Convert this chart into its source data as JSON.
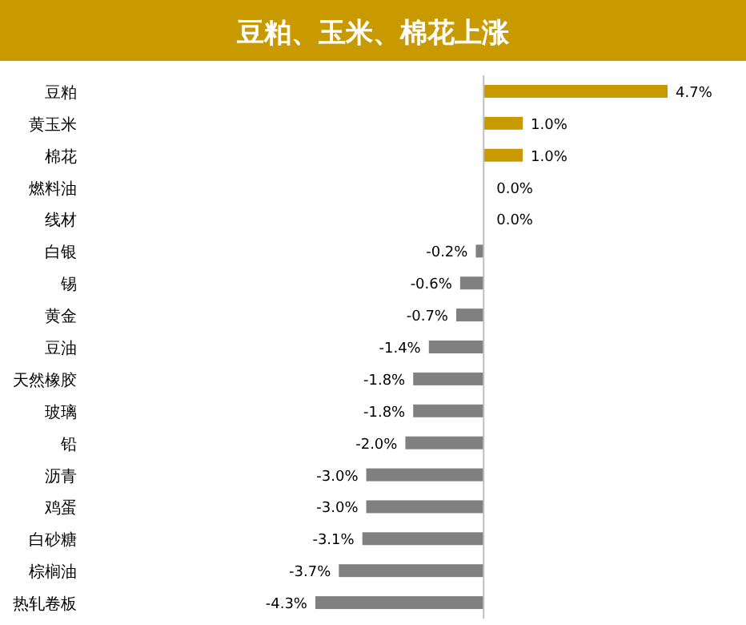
{
  "chart_data": {
    "type": "bar",
    "orientation": "horizontal",
    "title": "豆粕、玉米、棉花上涨",
    "categories": [
      "豆粕",
      "黄玉米",
      "棉花",
      "燃料油",
      "线材",
      "白银",
      "锡",
      "黄金",
      "豆油",
      "天然橡胶",
      "玻璃",
      "铅",
      "沥青",
      "鸡蛋",
      "白砂糖",
      "棕榈油",
      "热轧卷板"
    ],
    "values": [
      4.7,
      1.0,
      1.0,
      0.0,
      0.0,
      -0.2,
      -0.6,
      -0.7,
      -1.4,
      -1.8,
      -1.8,
      -2.0,
      -3.0,
      -3.0,
      -3.1,
      -3.7,
      -4.3
    ],
    "value_labels": [
      "4.7%",
      "1.0%",
      "1.0%",
      "0.0%",
      "0.0%",
      "-0.2%",
      "-0.6%",
      "-0.7%",
      "-1.4%",
      "-1.8%",
      "-1.8%",
      "-2.0%",
      "-3.0%",
      "-3.0%",
      "-3.1%",
      "-3.7%",
      "-4.3%"
    ],
    "colors": [
      "#c99a00",
      "#c99a00",
      "#c99a00",
      "#c99a00",
      "#c99a00",
      "#808080",
      "#808080",
      "#808080",
      "#808080",
      "#808080",
      "#808080",
      "#808080",
      "#808080",
      "#808080",
      "#808080",
      "#808080",
      "#808080"
    ]
  }
}
